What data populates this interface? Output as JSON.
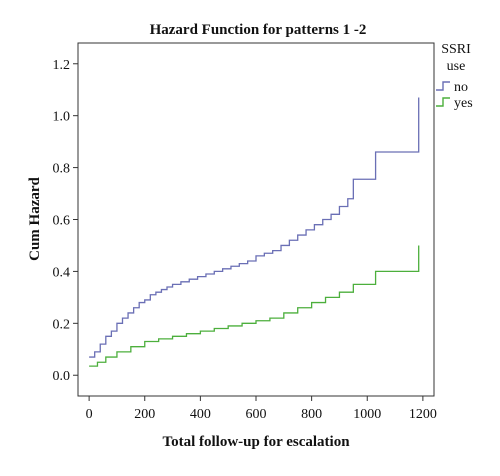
{
  "chart_data": {
    "type": "line",
    "title": "Hazard Function for patterns 1 -2",
    "xlabel": "Total follow-up for escalation",
    "ylabel": "Cum Hazard",
    "xlim": [
      -40,
      1240
    ],
    "ylim": [
      -0.08,
      1.28
    ],
    "xticks": [
      0,
      200,
      400,
      600,
      800,
      1000,
      1200
    ],
    "yticks": [
      0.0,
      0.2,
      0.4,
      0.6,
      0.8,
      1.0,
      1.2
    ],
    "ytick_labels": [
      "0.0",
      "0.2",
      "0.4",
      "0.6",
      "0.8",
      "1.0",
      "1.2"
    ],
    "grid": false,
    "legend_title": [
      "SSRI",
      "use"
    ],
    "legend_position": "right",
    "series": [
      {
        "name": "no",
        "color": "#6a6fb5",
        "step": true,
        "x": [
          0,
          20,
          40,
          60,
          80,
          100,
          120,
          140,
          160,
          180,
          200,
          220,
          240,
          260,
          280,
          300,
          330,
          360,
          390,
          420,
          450,
          480,
          510,
          540,
          570,
          600,
          630,
          660,
          690,
          720,
          750,
          780,
          810,
          840,
          870,
          900,
          930,
          950,
          1030,
          1180,
          1185
        ],
        "y": [
          0.07,
          0.09,
          0.12,
          0.15,
          0.17,
          0.2,
          0.22,
          0.24,
          0.26,
          0.28,
          0.29,
          0.31,
          0.32,
          0.33,
          0.34,
          0.35,
          0.36,
          0.37,
          0.38,
          0.39,
          0.4,
          0.41,
          0.42,
          0.43,
          0.44,
          0.46,
          0.47,
          0.48,
          0.5,
          0.52,
          0.54,
          0.56,
          0.58,
          0.6,
          0.62,
          0.65,
          0.68,
          0.755,
          0.86,
          0.86,
          1.07
        ]
      },
      {
        "name": "yes",
        "color": "#4caf3c",
        "step": true,
        "x": [
          0,
          30,
          60,
          100,
          150,
          200,
          250,
          300,
          350,
          400,
          450,
          500,
          550,
          600,
          650,
          700,
          750,
          800,
          850,
          900,
          950,
          1030,
          1180,
          1185
        ],
        "y": [
          0.035,
          0.05,
          0.07,
          0.09,
          0.11,
          0.13,
          0.14,
          0.15,
          0.16,
          0.17,
          0.18,
          0.19,
          0.2,
          0.21,
          0.22,
          0.24,
          0.26,
          0.28,
          0.3,
          0.32,
          0.35,
          0.4,
          0.4,
          0.5
        ]
      }
    ]
  }
}
